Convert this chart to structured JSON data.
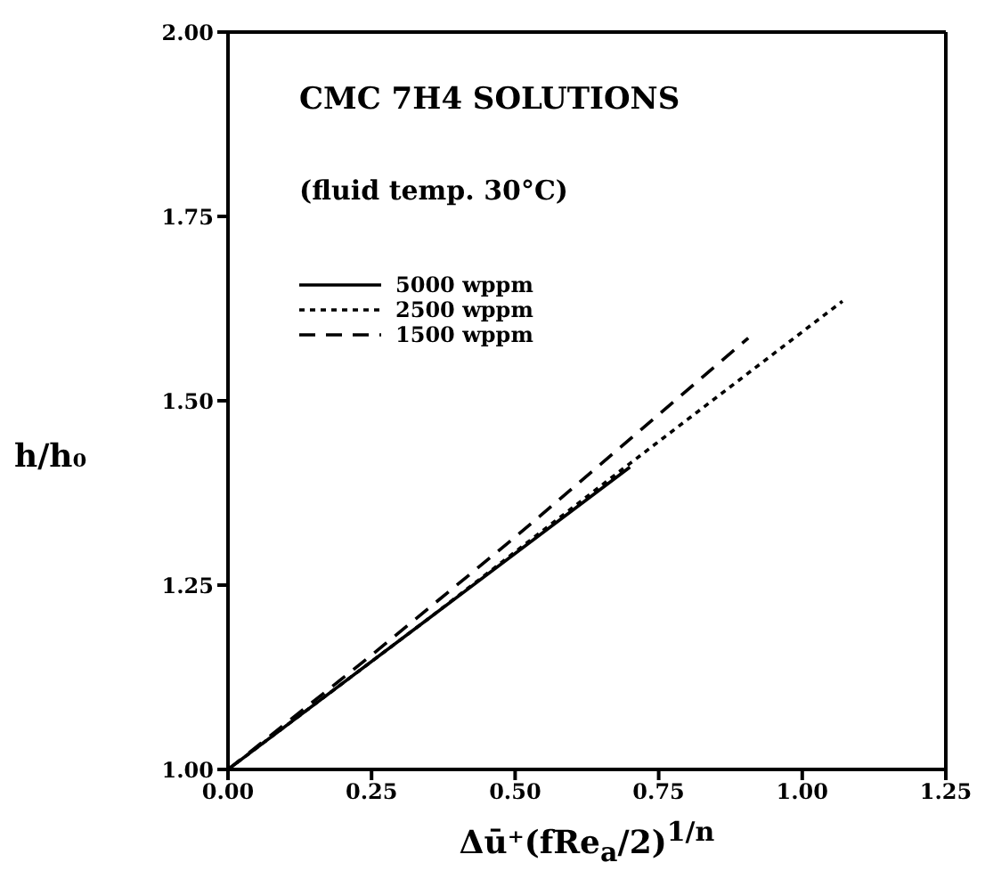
{
  "chart_data": {
    "type": "line",
    "title": "CMC 7H4 SOLUTIONS",
    "subtitle": "(fluid temp. 30°C)",
    "xlabel": "Δū⁺(fRe$_{a}$/2)$^{1/n}$",
    "ylabel": "h/h₀",
    "xlim": [
      0,
      1.25
    ],
    "xticks": [
      {
        "value": 0,
        "label": "0.00"
      },
      {
        "value": 0.25,
        "label": "0.25"
      },
      {
        "value": 0.5,
        "label": "0.50"
      },
      {
        "value": 0.75,
        "label": "0.75"
      },
      {
        "value": 1,
        "label": "1.00"
      },
      {
        "value": 1.25,
        "label": "1.25"
      }
    ],
    "ylim": [
      1,
      2
    ],
    "yticks": [
      {
        "value": 1,
        "label": "1.00"
      },
      {
        "value": 1.25,
        "label": "1.25"
      },
      {
        "value": 1.5,
        "label": "1.50"
      },
      {
        "value": 1.75,
        "label": "1.75"
      },
      {
        "value": 2,
        "label": "2.00"
      }
    ],
    "legend": "top left",
    "marker": "none",
    "series": [
      {
        "name": "5000 wppm",
        "color": "#000000",
        "line_style": "solid",
        "x": [
          0,
          0.35,
          0.7
        ],
        "values": [
          1,
          1.205,
          1.41
        ]
      },
      {
        "name": "2500 wppm",
        "color": "#000000",
        "line_style": "dotted",
        "x": [
          0,
          0.35,
          0.7,
          1.07
        ],
        "values": [
          1,
          1.205,
          1.415,
          1.635
        ]
      },
      {
        "name": "1500 wppm",
        "color": "#000000",
        "line_style": "dashed",
        "x": [
          0,
          0.25,
          0.5,
          0.906
        ],
        "values": [
          1,
          1.155,
          1.315,
          1.585
        ]
      }
    ]
  }
}
